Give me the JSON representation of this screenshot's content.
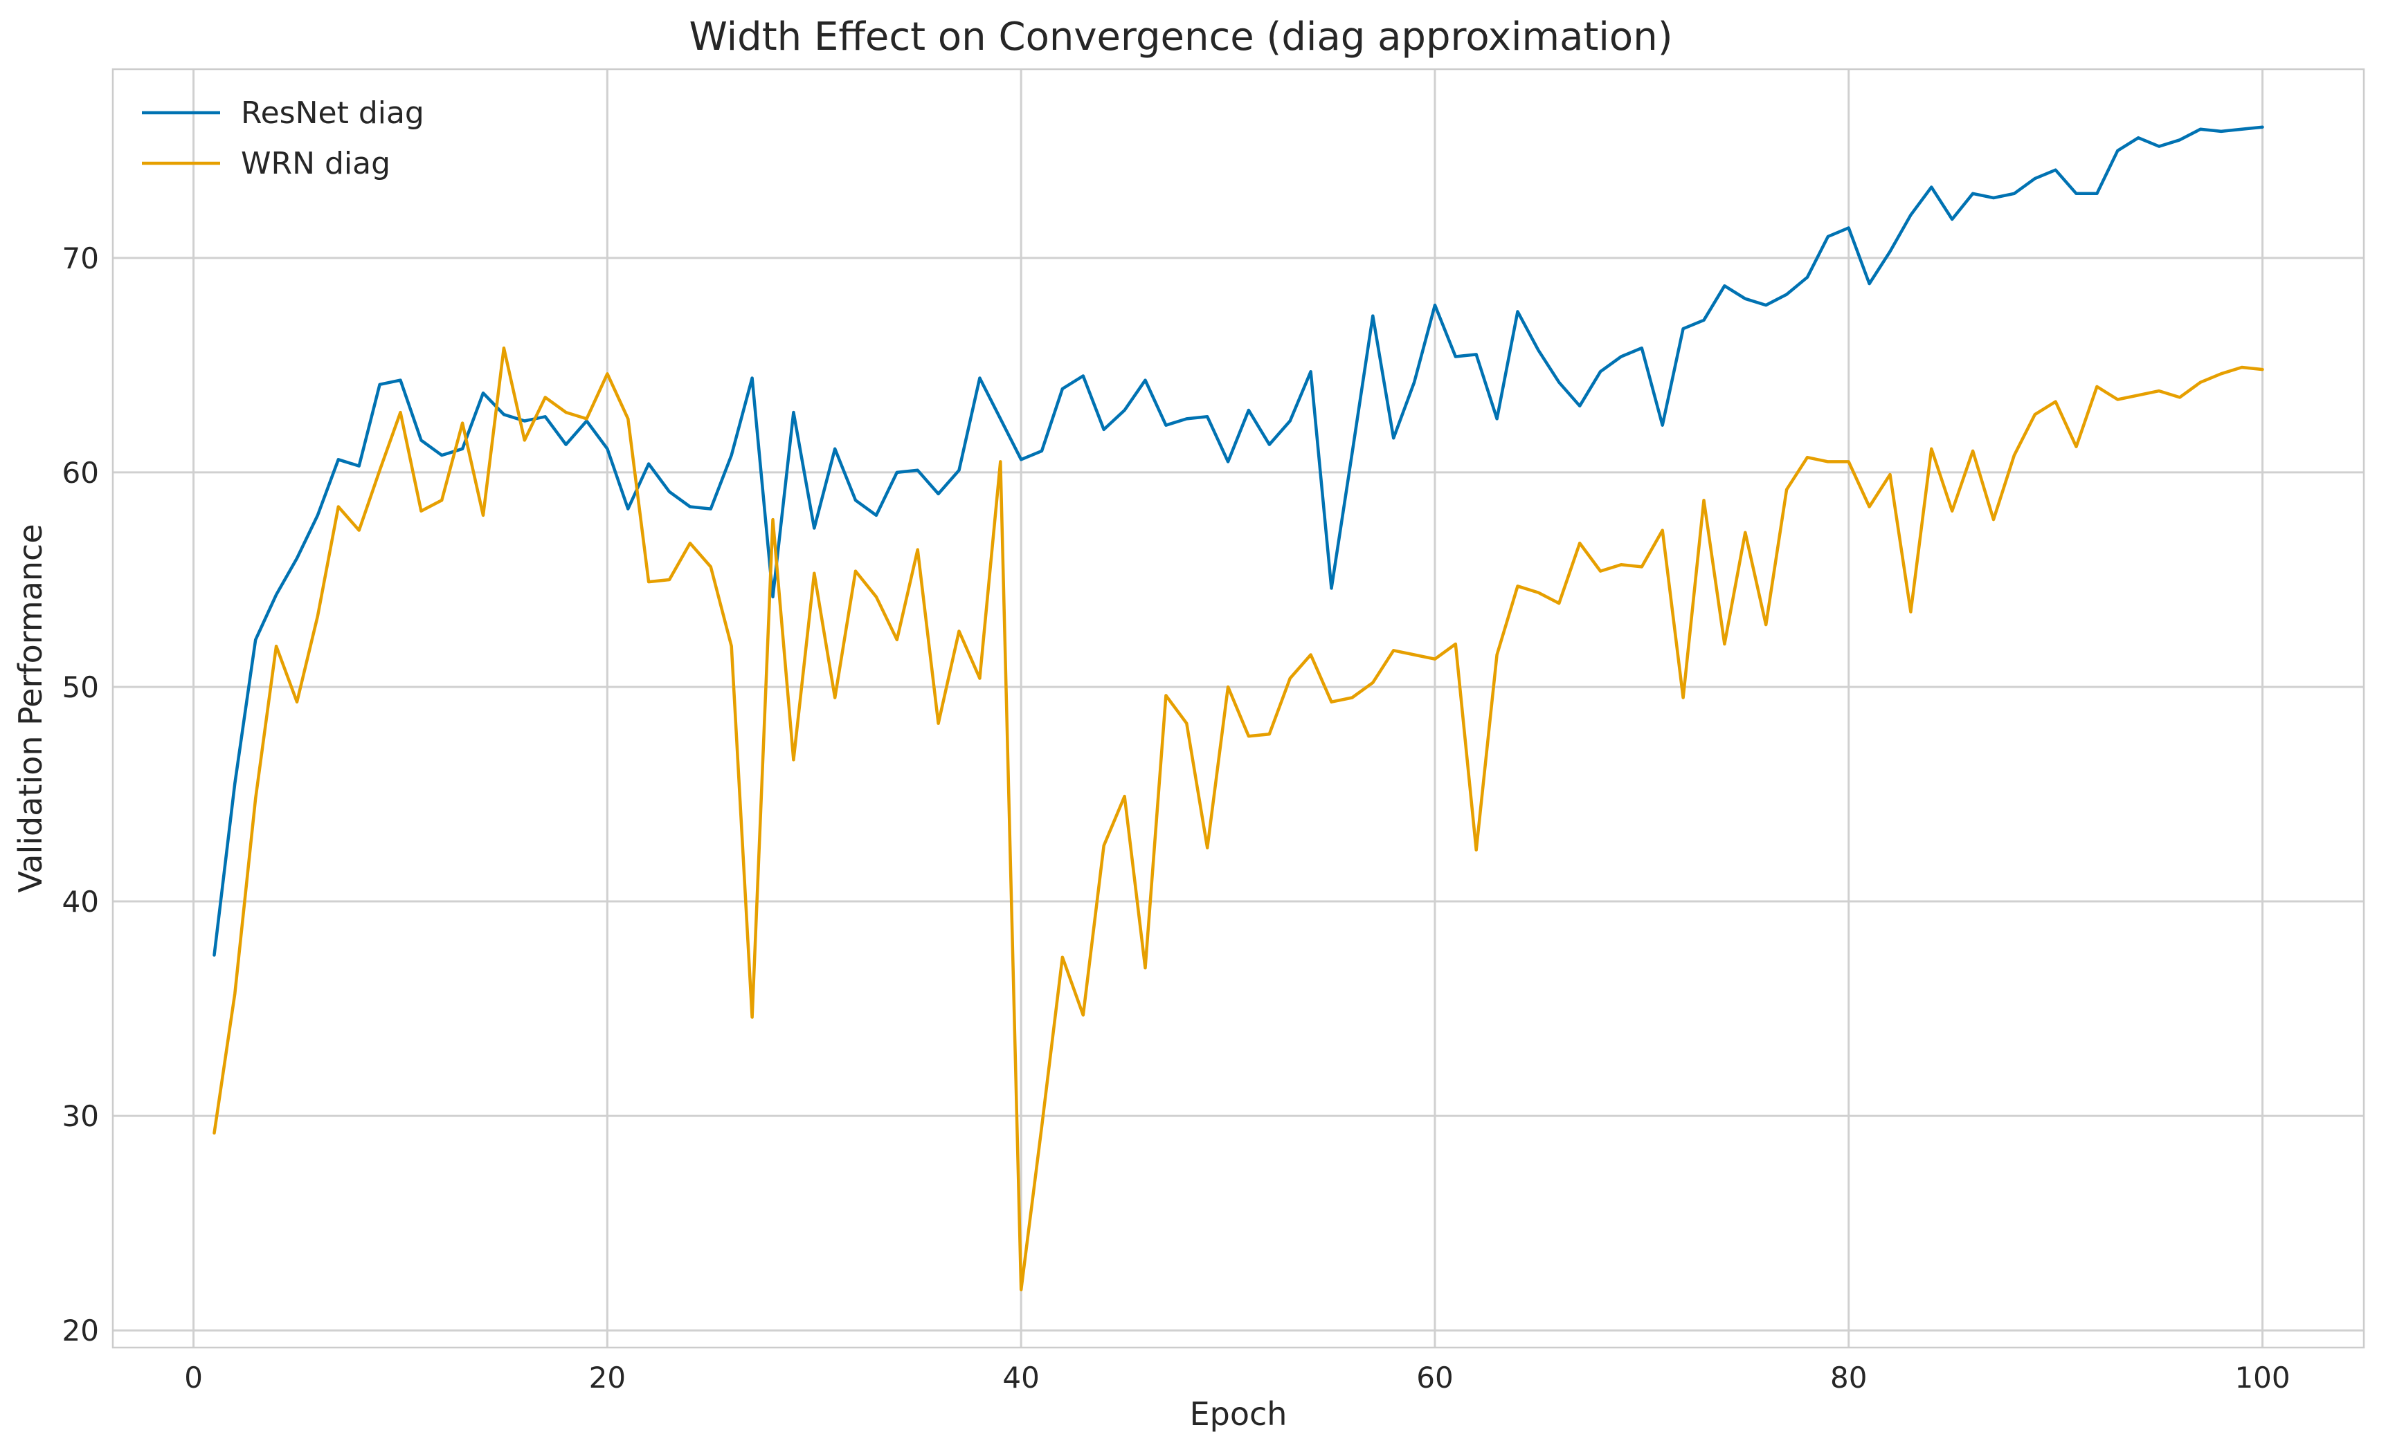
{
  "chart_data": {
    "type": "line",
    "title": "Width Effect on Convergence (diag approximation)",
    "xlabel": "Epoch",
    "ylabel": "Validation Performance",
    "xlim": [
      -3.9,
      104.9
    ],
    "ylim": [
      19.2,
      78.8
    ],
    "xticks": [
      0,
      20,
      40,
      60,
      80,
      100
    ],
    "yticks": [
      20,
      30,
      40,
      50,
      60,
      70
    ],
    "grid": true,
    "legend": "top-left",
    "x": [
      1,
      2,
      3,
      4,
      5,
      6,
      7,
      8,
      9,
      10,
      11,
      12,
      13,
      14,
      15,
      16,
      17,
      18,
      19,
      20,
      21,
      22,
      23,
      24,
      25,
      26,
      27,
      28,
      29,
      30,
      31,
      32,
      33,
      34,
      35,
      36,
      37,
      38,
      39,
      40,
      41,
      42,
      43,
      44,
      45,
      46,
      47,
      48,
      49,
      50,
      51,
      52,
      53,
      54,
      55,
      56,
      57,
      58,
      59,
      60,
      61,
      62,
      63,
      64,
      65,
      66,
      67,
      68,
      69,
      70,
      71,
      72,
      73,
      74,
      75,
      76,
      77,
      78,
      79,
      80,
      81,
      82,
      83,
      84,
      85,
      86,
      87,
      88,
      89,
      90,
      91,
      92,
      93,
      94,
      95,
      96,
      97,
      98,
      99,
      100
    ],
    "series": [
      {
        "name": "ResNet diag",
        "color": "#0072b2",
        "values": [
          37.5,
          45.5,
          52.2,
          54.3,
          56.0,
          58.0,
          60.6,
          60.3,
          64.1,
          64.3,
          61.5,
          60.8,
          61.1,
          63.7,
          62.7,
          62.4,
          62.6,
          61.3,
          62.4,
          61.1,
          58.3,
          60.4,
          59.1,
          58.4,
          58.3,
          60.8,
          64.4,
          54.2,
          62.8,
          57.4,
          61.1,
          58.7,
          58.0,
          60.0,
          60.1,
          59.0,
          60.1,
          64.4,
          62.5,
          60.6,
          61.0,
          63.9,
          64.5,
          62.0,
          62.9,
          64.3,
          62.2,
          62.5,
          62.6,
          60.5,
          62.9,
          61.3,
          62.4,
          64.7,
          54.6,
          60.9,
          67.3,
          61.6,
          64.2,
          67.8,
          65.4,
          65.5,
          62.5,
          67.5,
          65.7,
          64.2,
          63.1,
          64.7,
          65.4,
          65.8,
          62.2,
          66.7,
          67.1,
          68.7,
          68.1,
          67.8,
          68.3,
          69.1,
          71.0,
          71.4,
          68.8,
          70.3,
          72.0,
          73.3,
          71.8,
          73.0,
          72.8,
          73.0,
          73.7,
          74.1,
          73.0,
          73.0,
          75.0,
          75.6,
          75.2,
          75.5,
          76.0,
          75.9,
          76.0,
          76.1
        ]
      },
      {
        "name": "WRN diag",
        "color": "#e69f00",
        "values": [
          29.2,
          35.7,
          44.8,
          51.9,
          49.3,
          53.3,
          58.4,
          57.3,
          60.1,
          62.8,
          58.2,
          58.7,
          62.3,
          58.0,
          65.8,
          61.5,
          63.5,
          62.8,
          62.5,
          64.6,
          62.5,
          54.9,
          55.0,
          56.7,
          55.6,
          51.9,
          34.6,
          57.8,
          46.6,
          55.3,
          49.5,
          55.4,
          54.2,
          52.2,
          56.4,
          48.3,
          52.6,
          50.4,
          60.5,
          21.9,
          29.5,
          37.4,
          34.7,
          42.6,
          44.9,
          36.9,
          49.6,
          48.3,
          42.5,
          50.0,
          47.7,
          47.8,
          50.4,
          51.5,
          49.3,
          49.5,
          50.2,
          51.7,
          51.5,
          51.3,
          52.0,
          42.4,
          51.5,
          54.7,
          54.4,
          53.9,
          56.7,
          55.4,
          55.7,
          55.6,
          57.3,
          49.5,
          58.7,
          52.0,
          57.2,
          52.9,
          59.2,
          60.7,
          60.5,
          60.5,
          58.4,
          59.9,
          53.5,
          61.1,
          58.2,
          61.0,
          57.8,
          60.8,
          62.7,
          63.3,
          61.2,
          64.0,
          63.4,
          63.6,
          63.8,
          63.5,
          64.2,
          64.6,
          64.9,
          64.8
        ]
      }
    ]
  }
}
